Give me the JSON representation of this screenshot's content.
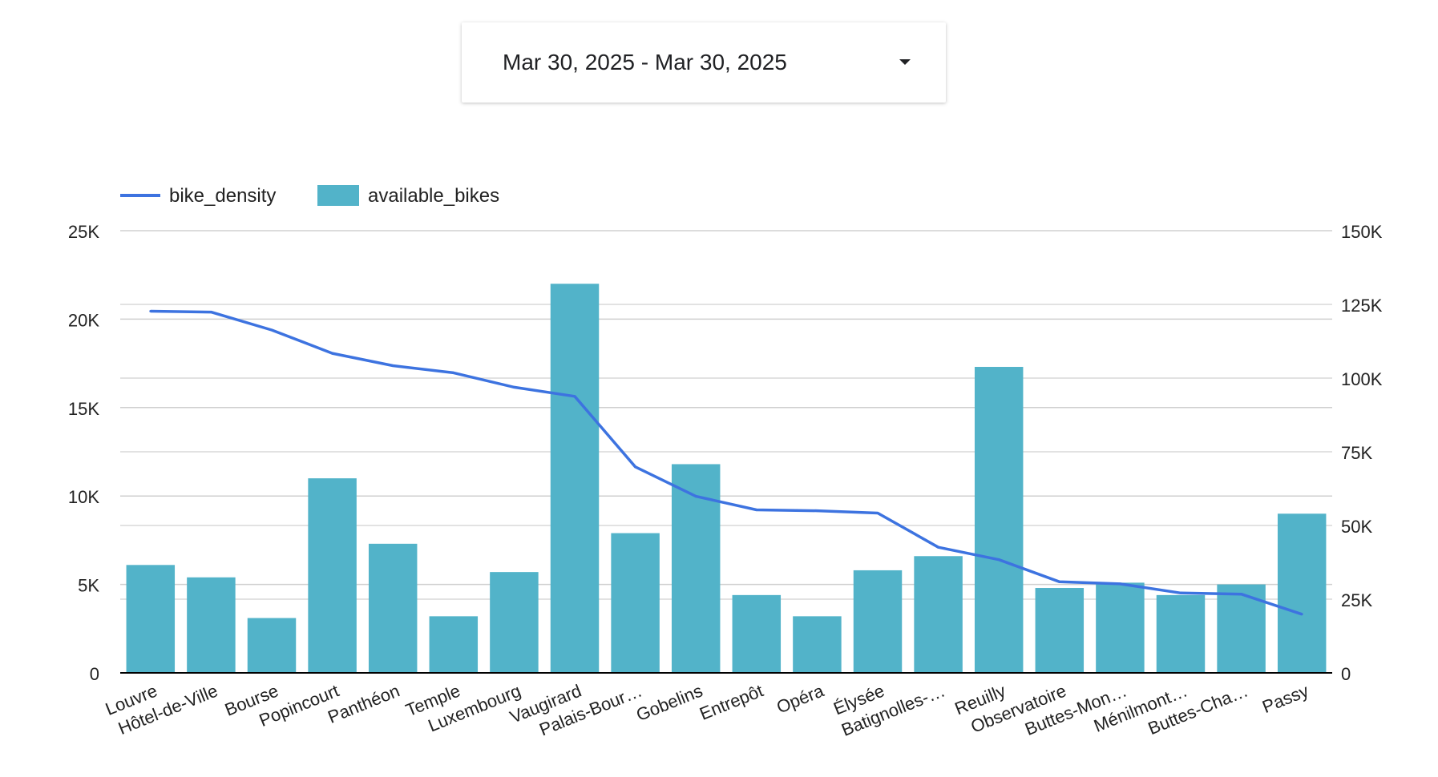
{
  "date_range": {
    "label": "Mar 30, 2025 - Mar 30, 2025",
    "caret_icon": "caret-down-icon"
  },
  "chart_data": {
    "type": "bar",
    "title": "",
    "categories": [
      "Louvre",
      "Hôtel-de-Ville",
      "Bourse",
      "Popincourt",
      "Panthéon",
      "Temple",
      "Luxembourg",
      "Vaugirard",
      "Palais-Bour…",
      "Gobelins",
      "Entrepôt",
      "Opéra",
      "Élysée",
      "Batignolles-…",
      "Reuilly",
      "Observatoire",
      "Buttes-Mon…",
      "Ménilmont…",
      "Buttes-Cha…",
      "Passy"
    ],
    "series": [
      {
        "name": "available_bikes",
        "type": "bar",
        "axis": "left",
        "color": "#52B3C9",
        "values": [
          6100,
          5400,
          3100,
          11000,
          7300,
          3200,
          5700,
          22000,
          7900,
          11800,
          4400,
          3200,
          5800,
          6600,
          17300,
          4800,
          5100,
          4400,
          5000,
          9000
        ]
      },
      {
        "name": "bike_density",
        "type": "line",
        "axis": "right",
        "color": "#3D73E0",
        "values": [
          122700,
          122400,
          116300,
          108400,
          104200,
          101800,
          96900,
          93800,
          69900,
          59900,
          55300,
          55000,
          54200,
          42600,
          38400,
          30900,
          30200,
          27100,
          26700,
          19900
        ]
      }
    ],
    "y_left": {
      "ylim": [
        0,
        25000
      ],
      "ticks": [
        "0",
        "5K",
        "10K",
        "15K",
        "20K",
        "25K"
      ]
    },
    "y_right": {
      "ylim": [
        0,
        150000
      ],
      "ticks": [
        "0",
        "25K",
        "50K",
        "75K",
        "100K",
        "125K",
        "150K"
      ]
    },
    "grid": true,
    "legend": {
      "placement": "top-left",
      "items": [
        "bike_density",
        "available_bikes"
      ]
    }
  }
}
